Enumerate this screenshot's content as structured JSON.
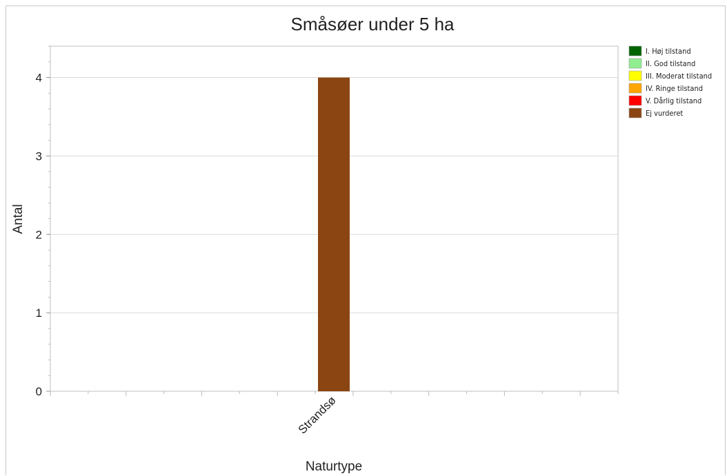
{
  "chart_data": {
    "type": "bar",
    "title": "Småsøer under 5 ha",
    "xlabel": "Naturtype",
    "ylabel": "Antal",
    "ylim": [
      0,
      4.4
    ],
    "yticks": [
      0,
      1,
      2,
      3,
      4
    ],
    "grid": true,
    "legend_position": "right",
    "categories": [
      "Strandsø"
    ],
    "series": [
      {
        "name": "I. Høj tilstand",
        "color": "#006400",
        "values": [
          0
        ]
      },
      {
        "name": "II. God tilstand",
        "color": "#90ee90",
        "values": [
          0
        ]
      },
      {
        "name": "III. Moderat tilstand",
        "color": "#ffff00",
        "values": [
          0
        ]
      },
      {
        "name": "IV. Ringe tilstand",
        "color": "#ffa500",
        "values": [
          0
        ]
      },
      {
        "name": "V. Dårlig tilstand",
        "color": "#ff0000",
        "values": [
          0
        ]
      },
      {
        "name": "Ej vurderet",
        "color": "#8b4513",
        "values": [
          4
        ]
      }
    ]
  }
}
